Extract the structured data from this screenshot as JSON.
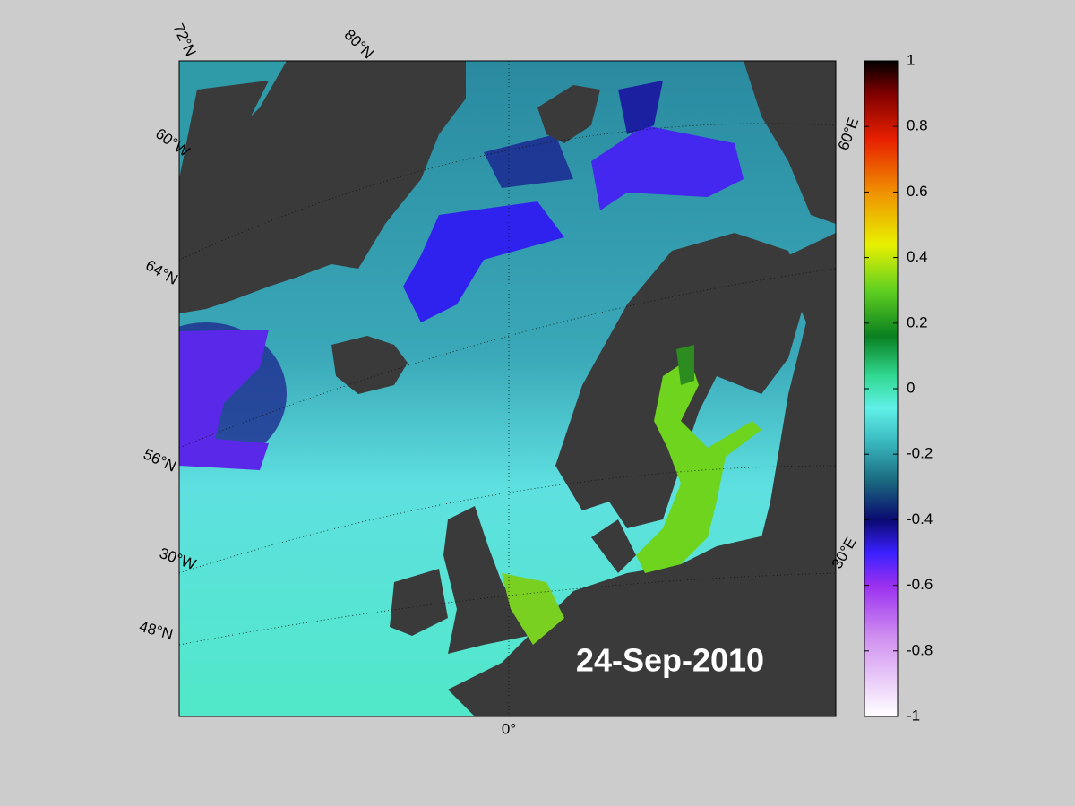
{
  "map": {
    "grid_labels": [
      "72°N",
      "80°N",
      "60°W",
      "64°N",
      "56°N",
      "30°W",
      "48°N",
      "0°",
      "30°E",
      "60°E"
    ],
    "date": "24-Sep-2010"
  },
  "colorbar": {
    "lim": [
      -1,
      1
    ],
    "ticks": [
      -1,
      -0.8,
      -0.6,
      -0.4,
      -0.2,
      0,
      0.2,
      0.4,
      0.6,
      0.8,
      1
    ]
  }
}
